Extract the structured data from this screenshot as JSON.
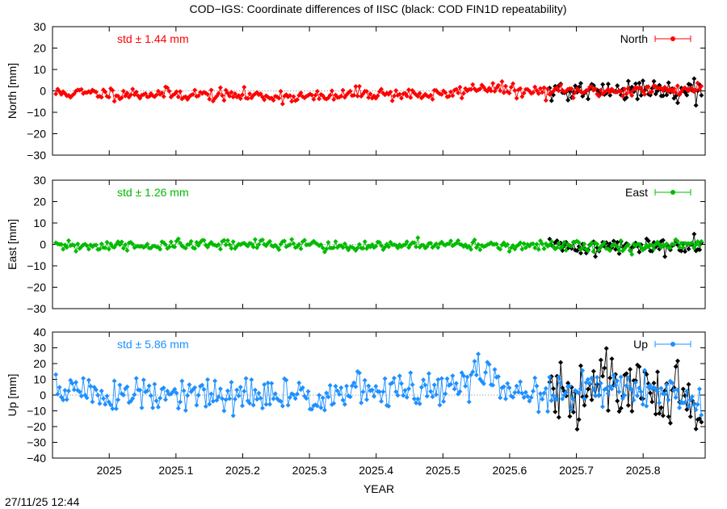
{
  "title": "COD−IGS: Coordinate differences of IISC (black: COD FIN1D repeatability)",
  "timestamp": "27/11/25 12:44",
  "colors": {
    "north": "#ff0000",
    "east": "#00bb00",
    "up": "#1e90ff",
    "repeatability": "#000000"
  },
  "chart_data": [
    {
      "type": "line",
      "id": "north",
      "ylabel": "North [mm]",
      "xlabel": "",
      "xlim": [
        2024.915,
        2025.893
      ],
      "ylim": [
        -30,
        30
      ],
      "yticks": [
        "30",
        "20",
        "10",
        "0",
        "−10",
        "−20",
        "−30"
      ],
      "ytick_values": [
        30,
        20,
        10,
        0,
        -10,
        -20,
        -30
      ],
      "std_label": "std ± 1.44 mm",
      "legend": "North",
      "legend_position": "top-right",
      "grid": false,
      "zero_line": true,
      "std": 1.44,
      "baseline": [
        [
          2024.92,
          -1
        ],
        [
          2025.1,
          -1.5
        ],
        [
          2025.33,
          -3
        ],
        [
          2025.37,
          -1
        ],
        [
          2025.5,
          -2
        ],
        [
          2025.56,
          2
        ],
        [
          2025.62,
          -0.5
        ],
        [
          2025.75,
          0
        ],
        [
          2025.88,
          1
        ]
      ],
      "repeat_start": 2025.66,
      "repeat_std": 2.5,
      "series": [
        {
          "name": "North",
          "color_key": "north",
          "seed": 11
        },
        {
          "name": "",
          "color_key": "repeatability",
          "seed": 21
        }
      ]
    },
    {
      "type": "line",
      "id": "east",
      "ylabel": "East [mm]",
      "xlabel": "",
      "xlim": [
        2024.915,
        2025.893
      ],
      "ylim": [
        -30,
        30
      ],
      "yticks": [
        "30",
        "20",
        "10",
        "0",
        "−10",
        "−20",
        "−30"
      ],
      "ytick_values": [
        30,
        20,
        10,
        0,
        -10,
        -20,
        -30
      ],
      "std_label": "std ± 1.26 mm",
      "legend": "East",
      "legend_position": "top-right",
      "grid": false,
      "zero_line": true,
      "std": 1.26,
      "baseline": [
        [
          2024.92,
          -1
        ],
        [
          2025.1,
          -0.5
        ],
        [
          2025.3,
          0.5
        ],
        [
          2025.35,
          -1.5
        ],
        [
          2025.5,
          0
        ],
        [
          2025.7,
          -1
        ],
        [
          2025.8,
          -1
        ],
        [
          2025.88,
          0
        ]
      ],
      "repeat_start": 2025.66,
      "repeat_std": 2.0,
      "series": [
        {
          "name": "East",
          "color_key": "east",
          "seed": 31
        },
        {
          "name": "",
          "color_key": "repeatability",
          "seed": 41
        }
      ]
    },
    {
      "type": "line",
      "id": "up",
      "ylabel": "Up [mm]",
      "xlabel": "YEAR",
      "xlim": [
        2024.915,
        2025.893
      ],
      "ylim": [
        -40,
        40
      ],
      "yticks": [
        "40",
        "30",
        "20",
        "10",
        "0",
        "−10",
        "−20",
        "−30",
        "−40"
      ],
      "ytick_values": [
        40,
        30,
        20,
        10,
        0,
        -10,
        -20,
        -30,
        -40
      ],
      "xticks": [
        "2025",
        "2025.1",
        "2025.2",
        "2025.3",
        "2025.4",
        "2025.5",
        "2025.6",
        "2025.7",
        "2025.8"
      ],
      "xtick_values": [
        2025,
        2025.1,
        2025.2,
        2025.3,
        2025.4,
        2025.5,
        2025.6,
        2025.7,
        2025.8
      ],
      "std_label": "std ± 5.86 mm",
      "legend": "Up",
      "legend_position": "top-right",
      "grid": false,
      "zero_line": true,
      "std": 5.86,
      "baseline": [
        [
          2024.92,
          5
        ],
        [
          2025.0,
          0
        ],
        [
          2025.1,
          -1
        ],
        [
          2025.25,
          -1
        ],
        [
          2025.4,
          3
        ],
        [
          2025.5,
          2
        ],
        [
          2025.56,
          15
        ],
        [
          2025.6,
          2
        ],
        [
          2025.7,
          0
        ],
        [
          2025.75,
          8
        ],
        [
          2025.85,
          0
        ],
        [
          2025.88,
          -10
        ]
      ],
      "repeat_start": 2025.66,
      "repeat_std": 12,
      "series": [
        {
          "name": "Up",
          "color_key": "up",
          "seed": 51
        },
        {
          "name": "",
          "color_key": "repeatability",
          "seed": 61
        }
      ]
    }
  ]
}
